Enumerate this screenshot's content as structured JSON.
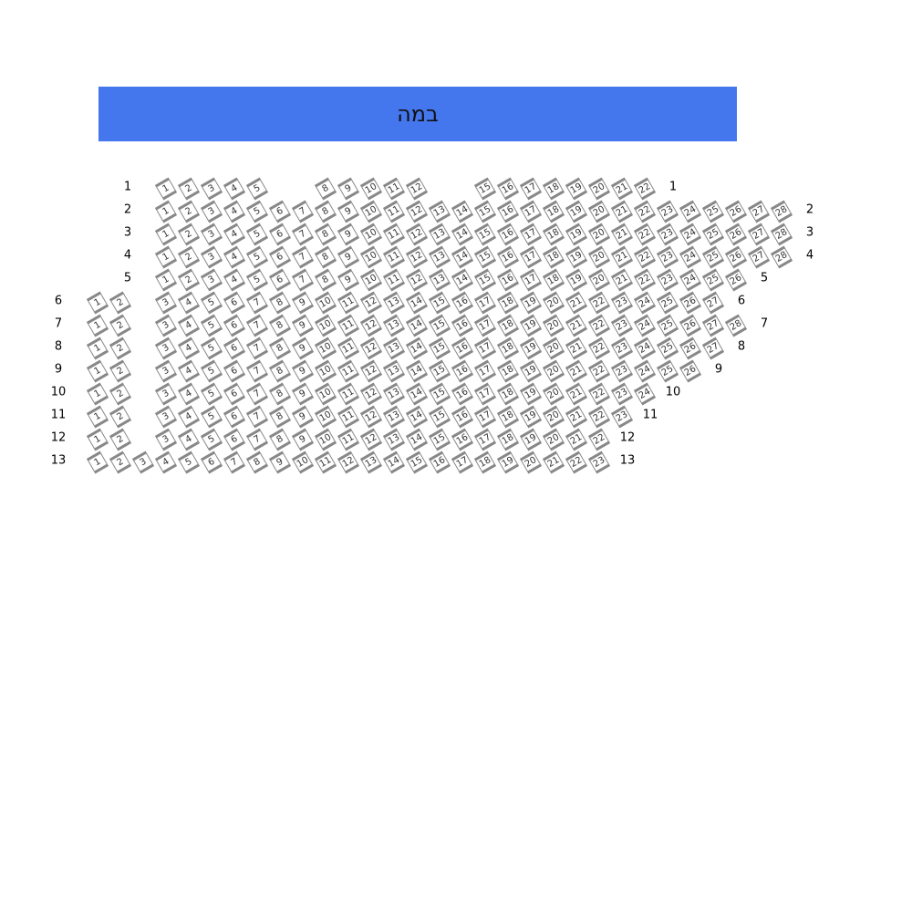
{
  "stage": {
    "label": "במה",
    "color": "#4477ee"
  },
  "rows": [
    {
      "label": "1",
      "seats": [
        1,
        2,
        3,
        4,
        5,
        8,
        9,
        10,
        11,
        12,
        15,
        16,
        17,
        18,
        19,
        20,
        21,
        22
      ]
    },
    {
      "label": "2",
      "seats": "1-28"
    },
    {
      "label": "3",
      "seats": "1-28"
    },
    {
      "label": "4",
      "seats": "1-28"
    },
    {
      "label": "5",
      "seats": "1-26"
    },
    {
      "label": "6",
      "seats": "1-27"
    },
    {
      "label": "7",
      "seats": "1-28"
    },
    {
      "label": "8",
      "seats": "1-27"
    },
    {
      "label": "9",
      "seats": "1-26"
    },
    {
      "label": "10",
      "seats": "1-24"
    },
    {
      "label": "11",
      "seats": "1-23"
    },
    {
      "label": "12",
      "seats": "1-22"
    },
    {
      "label": "13",
      "seats": "1-23"
    }
  ]
}
